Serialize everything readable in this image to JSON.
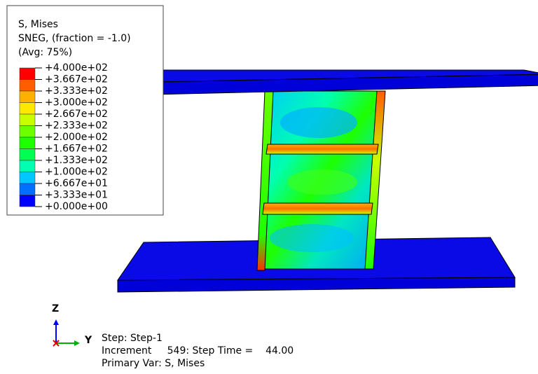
{
  "legend": {
    "title_lines": [
      "S, Mises",
      "SNEG, (fraction = -1.0)",
      "(Avg: 75%)"
    ],
    "labels": [
      "+4.000e+02",
      "+3.667e+02",
      "+3.333e+02",
      "+3.000e+02",
      "+2.667e+02",
      "+2.333e+02",
      "+2.000e+02",
      "+1.667e+02",
      "+1.333e+02",
      "+1.000e+02",
      "+6.667e+01",
      "+3.333e+01",
      "+0.000e+00"
    ],
    "colors": [
      "#ff0000",
      "#ff5d00",
      "#ffb000",
      "#ffe800",
      "#c8ff00",
      "#6cff00",
      "#1eff00",
      "#00ff50",
      "#00ffb0",
      "#00c8ff",
      "#0070ff",
      "#0000ff"
    ]
  },
  "triad": {
    "z": "Z",
    "y": "Y"
  },
  "status": {
    "lines": [
      "Step: Step-1",
      "Increment     549: Step Time =    44.00",
      "Primary Var: S, Mises"
    ]
  }
}
